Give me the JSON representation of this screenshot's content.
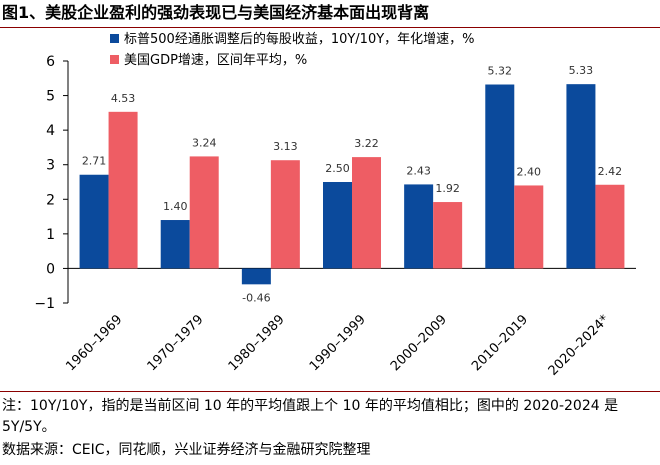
{
  "title": "图1、美股企业盈利的强劲表现已与美国经济基本面出现背离",
  "note": "注：10Y/10Y，指的是当前区间 10 年的平均值跟上个 10 年的平均值相比；图中的 2020-2024 是 5Y/5Y。",
  "source": "数据来源：CEIC，同花顺，兴业证券经济与金融研究院整理",
  "chart_data": {
    "type": "bar",
    "categories": [
      "1960-1969",
      "1970-1979",
      "1980-1989",
      "1990-1999",
      "2000-2009",
      "2010-2019",
      "2020-2024*"
    ],
    "series": [
      {
        "name": "标普500经通胀调整后的每股收益，10Y/10Y，年化增速，%",
        "color": "#0b4a9c",
        "values": [
          2.71,
          1.4,
          -0.46,
          2.5,
          2.43,
          5.32,
          5.33
        ],
        "labels": [
          "2.71",
          "1.40",
          "-0.46",
          "2.50",
          "2.43",
          "5.32",
          "5.33"
        ]
      },
      {
        "name": "美国GDP增速，区间年平均，%",
        "color": "#ee5d64",
        "values": [
          4.53,
          3.24,
          3.13,
          3.22,
          1.92,
          2.4,
          2.42
        ],
        "labels": [
          "4.53",
          "3.24",
          "3.13",
          "3.22",
          "1.92",
          "2.40",
          "2.42"
        ]
      }
    ],
    "ylim": [
      -1,
      6
    ],
    "yticks": [
      -1,
      0,
      1,
      2,
      3,
      4,
      5,
      6
    ],
    "legend_position": "top-left",
    "grid": false
  }
}
